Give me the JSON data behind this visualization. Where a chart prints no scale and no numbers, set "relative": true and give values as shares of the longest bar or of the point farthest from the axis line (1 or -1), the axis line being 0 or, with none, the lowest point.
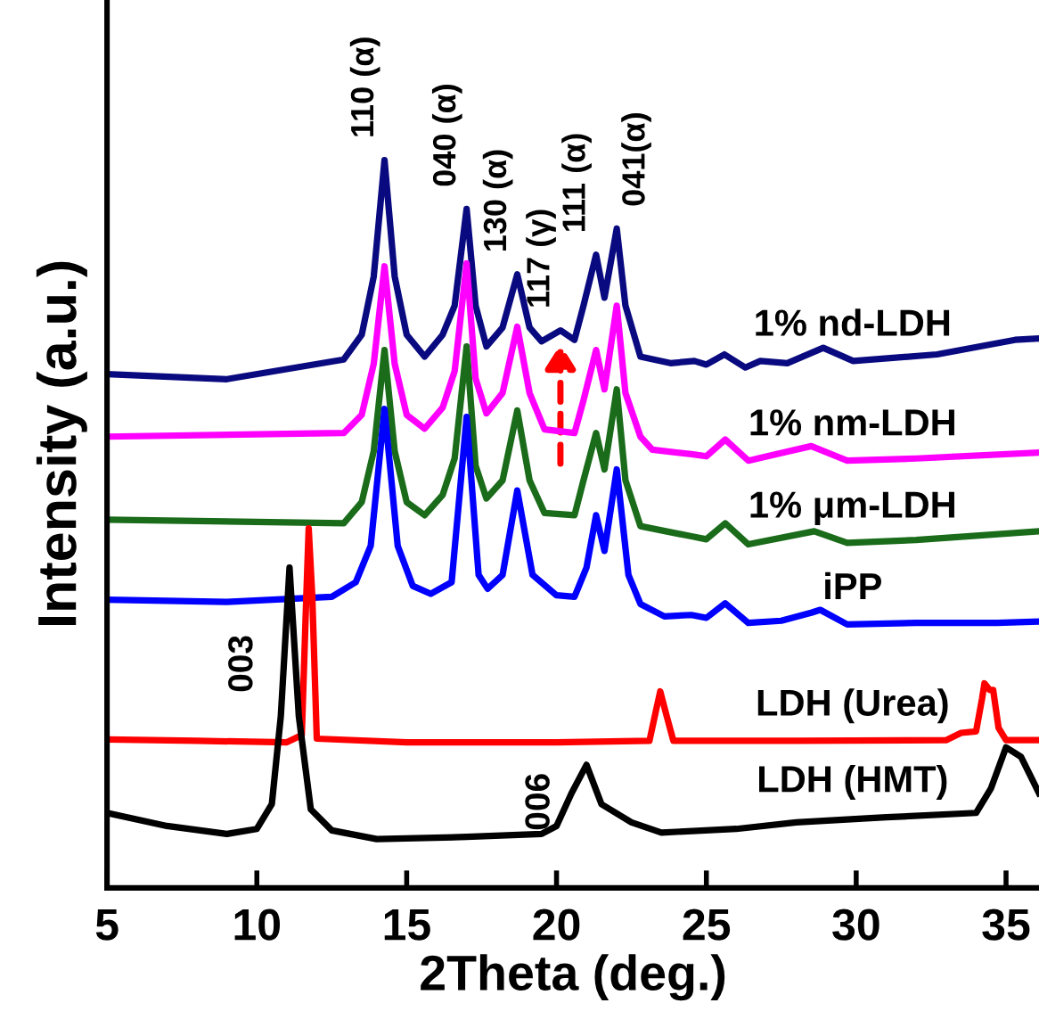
{
  "chart_data": {
    "type": "line",
    "relative": true,
    "xlabel": "2Theta (deg.)",
    "ylabel": "Intensity (a.u.)",
    "xlim": [
      5,
      36.1
    ],
    "xticks": [
      5,
      10,
      15,
      20,
      25,
      30,
      35
    ],
    "grid": false,
    "legend": false,
    "marker": "none",
    "line_style": "solid",
    "series": [
      {
        "name": "1% nd-LDH",
        "color": "#0a0a80",
        "x": [
          5,
          9,
          12.9,
          13.5,
          13.9,
          14.26,
          14.6,
          15.0,
          15.6,
          16.2,
          16.6,
          17.0,
          17.3,
          17.66,
          18.2,
          18.69,
          19.1,
          19.5,
          20.13,
          20.6,
          20.9,
          21.32,
          21.6,
          22.01,
          22.3,
          22.8,
          23.8,
          24.6,
          25.0,
          25.6,
          26.3,
          26.8,
          27.7,
          28.9,
          29.9,
          32.7,
          35.3,
          36.1
        ],
        "values": [
          0.706,
          0.699,
          0.726,
          0.76,
          0.84,
          1.0,
          0.84,
          0.76,
          0.73,
          0.76,
          0.8,
          0.933,
          0.8,
          0.744,
          0.77,
          0.843,
          0.77,
          0.751,
          0.766,
          0.753,
          0.8,
          0.87,
          0.811,
          0.906,
          0.8,
          0.73,
          0.721,
          0.724,
          0.719,
          0.733,
          0.715,
          0.724,
          0.721,
          0.742,
          0.724,
          0.733,
          0.753,
          0.755
        ]
      },
      {
        "name": "1% nm-LDH",
        "color": "#ff00ff",
        "x": [
          5,
          12.9,
          13.5,
          13.9,
          14.26,
          14.6,
          15.0,
          15.6,
          16.2,
          16.6,
          17.0,
          17.3,
          17.66,
          18.2,
          18.69,
          19.1,
          19.6,
          20.6,
          20.9,
          21.32,
          21.6,
          22.01,
          22.3,
          22.8,
          23.2,
          24.5,
          25.0,
          25.63,
          26.4,
          28.5,
          29.7,
          32.0,
          36.1
        ],
        "values": [
          0.62,
          0.625,
          0.65,
          0.72,
          0.854,
          0.72,
          0.65,
          0.631,
          0.66,
          0.71,
          0.858,
          0.7,
          0.652,
          0.68,
          0.771,
          0.68,
          0.63,
          0.625,
          0.67,
          0.739,
          0.685,
          0.8,
          0.68,
          0.62,
          0.602,
          0.596,
          0.593,
          0.616,
          0.587,
          0.607,
          0.587,
          0.59,
          0.598
        ]
      },
      {
        "name": "1% μm-LDH",
        "color": "#1a6b1a",
        "x": [
          5,
          12.9,
          13.5,
          13.9,
          14.26,
          14.6,
          15.0,
          15.6,
          16.2,
          16.6,
          17.0,
          17.3,
          17.66,
          18.2,
          18.69,
          19.1,
          19.6,
          20.6,
          20.9,
          21.32,
          21.6,
          22.01,
          22.3,
          22.8,
          24.5,
          25.0,
          25.63,
          26.4,
          28.6,
          29.7,
          32.0,
          36.1
        ],
        "values": [
          0.506,
          0.501,
          0.53,
          0.6,
          0.739,
          0.6,
          0.53,
          0.512,
          0.54,
          0.59,
          0.744,
          0.58,
          0.535,
          0.56,
          0.656,
          0.56,
          0.515,
          0.512,
          0.56,
          0.625,
          0.575,
          0.685,
          0.56,
          0.497,
          0.483,
          0.479,
          0.501,
          0.472,
          0.49,
          0.474,
          0.478,
          0.49
        ]
      },
      {
        "name": "iPP",
        "color": "#0000ff",
        "x": [
          5,
          9,
          12.5,
          13.3,
          13.8,
          14.26,
          14.7,
          15.2,
          15.8,
          16.5,
          17.0,
          17.4,
          17.7,
          18.2,
          18.69,
          19.2,
          20.0,
          20.6,
          21.0,
          21.32,
          21.6,
          22.01,
          22.4,
          22.8,
          23.6,
          24.5,
          25.0,
          25.63,
          26.4,
          27.5,
          28.5,
          28.8,
          29.7,
          32.0,
          34.7,
          36.1
        ],
        "values": [
          0.396,
          0.393,
          0.4,
          0.42,
          0.47,
          0.658,
          0.47,
          0.415,
          0.404,
          0.42,
          0.647,
          0.43,
          0.411,
          0.43,
          0.546,
          0.43,
          0.402,
          0.4,
          0.44,
          0.512,
          0.463,
          0.575,
          0.43,
          0.39,
          0.373,
          0.375,
          0.371,
          0.391,
          0.364,
          0.367,
          0.378,
          0.382,
          0.362,
          0.364,
          0.364,
          0.366
        ]
      },
      {
        "name": "LDH (Urea)",
        "color": "#ff0000",
        "x": [
          5,
          8,
          11,
          11.5,
          11.65,
          11.73,
          11.85,
          12.0,
          15,
          20,
          23.1,
          23.3,
          23.46,
          23.65,
          23.9,
          28,
          33,
          33.5,
          34.0,
          34.2,
          34.28,
          34.45,
          34.57,
          34.75,
          35,
          36.1
        ],
        "values": [
          0.204,
          0.202,
          0.2,
          0.21,
          0.4,
          0.494,
          0.4,
          0.205,
          0.2,
          0.2,
          0.202,
          0.24,
          0.27,
          0.24,
          0.202,
          0.202,
          0.203,
          0.213,
          0.215,
          0.26,
          0.281,
          0.272,
          0.272,
          0.22,
          0.203,
          0.203
        ]
      },
      {
        "name": "LDH (HMT)",
        "color": "#000000",
        "x": [
          5,
          7,
          9,
          10,
          10.5,
          10.8,
          11.09,
          11.4,
          11.8,
          12.5,
          14,
          17,
          19.5,
          20,
          20.5,
          21.0,
          21.5,
          22.5,
          23.5,
          26,
          28,
          31,
          34,
          34.5,
          35,
          35.5,
          36.1
        ],
        "values": [
          0.103,
          0.085,
          0.074,
          0.081,
          0.115,
          0.236,
          0.44,
          0.236,
          0.108,
          0.079,
          0.067,
          0.07,
          0.074,
          0.085,
          0.13,
          0.169,
          0.115,
          0.09,
          0.076,
          0.081,
          0.09,
          0.097,
          0.103,
          0.137,
          0.193,
          0.18,
          0.13
        ]
      }
    ],
    "annotations": [
      {
        "text": "110 (α)",
        "x": 14.26,
        "y": 1.0
      },
      {
        "text": "040 (α)",
        "x": 17.0,
        "y": 0.933
      },
      {
        "text": "130 (α)",
        "x": 18.69,
        "y": 0.843
      },
      {
        "text": "117 (γ)",
        "x": 20.13,
        "y": 0.766
      },
      {
        "text": "111 (α)",
        "x": 21.32,
        "y": 0.87
      },
      {
        "text": "041(α)",
        "x": 22.01,
        "y": 0.906
      },
      {
        "text": "003",
        "x": 11.09,
        "y": 0.44
      },
      {
        "text": "006",
        "x": 21.0,
        "y": 0.169
      }
    ]
  }
}
